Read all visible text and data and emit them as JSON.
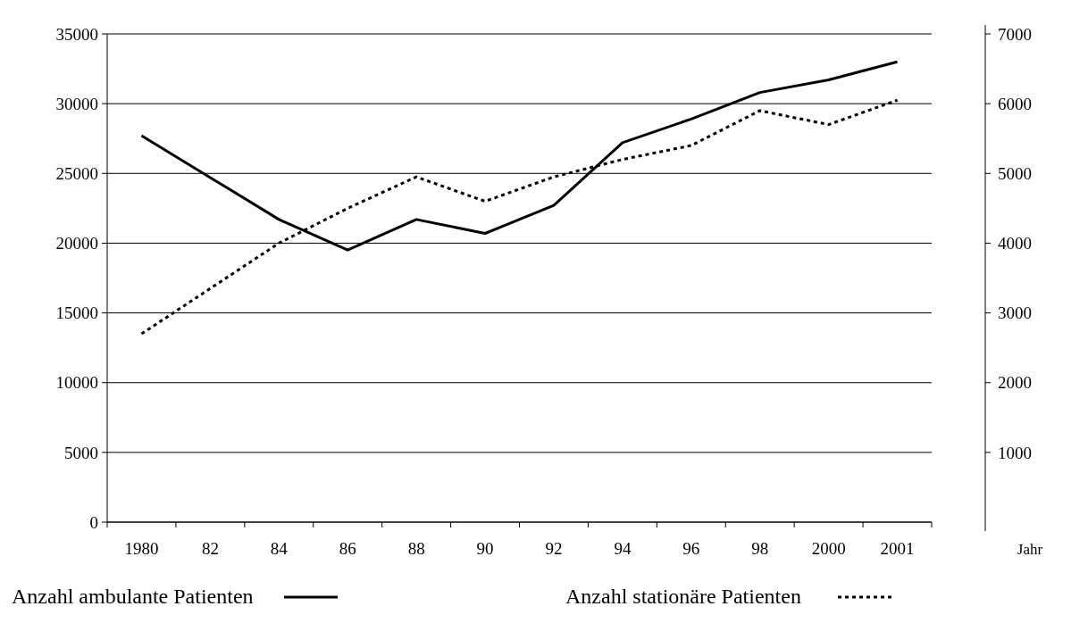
{
  "chart_data": {
    "type": "line",
    "categories": [
      "1980",
      "82",
      "84",
      "86",
      "88",
      "90",
      "92",
      "94",
      "96",
      "98",
      "2000",
      "2001"
    ],
    "xlabel": "Jahr",
    "ylim": [
      0,
      35000
    ],
    "yticks": [
      0,
      5000,
      10000,
      15000,
      20000,
      25000,
      30000,
      35000
    ],
    "y2lim": [
      0,
      7000
    ],
    "y2ticks": [
      1000,
      2000,
      3000,
      4000,
      5000,
      6000,
      7000
    ],
    "grid": "y",
    "legend": "bottom",
    "marker": "none",
    "series": [
      {
        "name": "Anzahl ambulante Patienten",
        "color": "#000000",
        "line_style": "solid",
        "values": [
          27700,
          24700,
          21700,
          19500,
          21700,
          20700,
          22700,
          27200,
          28900,
          30800,
          31700,
          33000
        ]
      },
      {
        "name": "Anzahl stationäre Patienten",
        "color": "#000000",
        "line_style": "dotted",
        "axis": "y2",
        "values": [
          2700,
          3350,
          4000,
          4500,
          4950,
          4600,
          4950,
          5200,
          5400,
          5900,
          5700,
          6050
        ]
      }
    ]
  }
}
